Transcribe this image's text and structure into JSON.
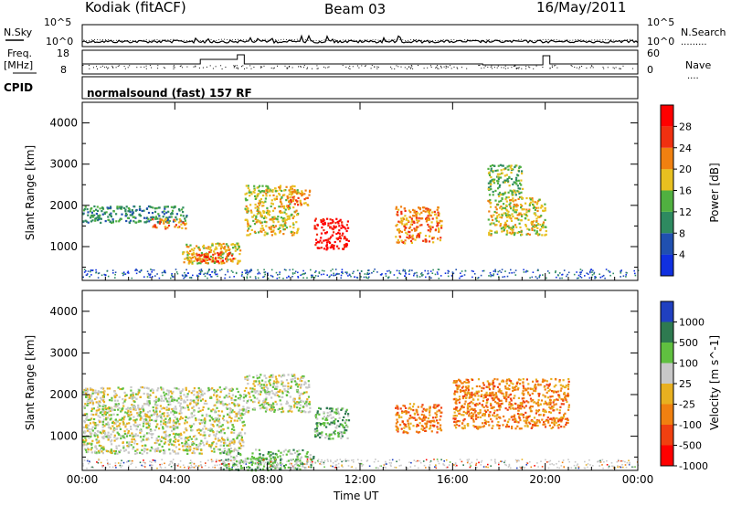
{
  "header": {
    "station": "Kodiak (fitACF)",
    "beam": "Beam 03",
    "date": "16/May/2011"
  },
  "aux": {
    "nsky_label": "N.Sky",
    "nsearch_label": "N.Search",
    "freq_label_1": "Freq.",
    "freq_label_2": "[MHz]",
    "nave_label": "Nave",
    "cpid_label": "CPID",
    "noise_ticks_left": [
      "10^5",
      "10^0"
    ],
    "noise_ticks_right": [
      "10^5",
      "10^0"
    ],
    "freq_ticks": [
      "18",
      "8"
    ],
    "nave_ticks": [
      "60",
      "0"
    ],
    "cpid_text": "normalsound (fast) 157 RF"
  },
  "chart_data": [
    {
      "type": "heatmap",
      "panel": "power",
      "ylabel": "Slant Range [km]",
      "yticks": [
        "4000",
        "3000",
        "2000",
        "1000"
      ],
      "ylim": [
        180,
        4500
      ],
      "xlim": [
        0,
        24
      ],
      "colorbar_label": "Power [dB]",
      "colorbar_ticks": [
        "28",
        "24",
        "20",
        "16",
        "12",
        "8",
        "4"
      ],
      "colors": [
        "#1030e0",
        "#2050b0",
        "#2e8a60",
        "#50b040",
        "#e8c020",
        "#f08010",
        "#f03010",
        "#ff0000"
      ],
      "regions": [
        {
          "t0": 0.0,
          "t1": 4.5,
          "r0": 1600,
          "r1": 2000,
          "level": 2
        },
        {
          "t0": 3.0,
          "t1": 4.5,
          "r0": 1450,
          "r1": 1700,
          "level": 5
        },
        {
          "t0": 4.3,
          "t1": 6.8,
          "r0": 600,
          "r1": 1100,
          "level": 4
        },
        {
          "t0": 4.8,
          "t1": 6.5,
          "r0": 650,
          "r1": 900,
          "level": 6
        },
        {
          "t0": 7.0,
          "t1": 9.3,
          "r0": 1300,
          "r1": 2500,
          "level": 4
        },
        {
          "t0": 8.8,
          "t1": 9.8,
          "r0": 2000,
          "r1": 2400,
          "level": 5
        },
        {
          "t0": 10.0,
          "t1": 11.5,
          "r0": 950,
          "r1": 1700,
          "level": 7
        },
        {
          "t0": 13.5,
          "t1": 15.5,
          "r0": 1100,
          "r1": 2000,
          "level": 5
        },
        {
          "t0": 17.5,
          "t1": 20.0,
          "r0": 1300,
          "r1": 2200,
          "level": 4
        },
        {
          "t0": 17.5,
          "t1": 19.0,
          "r0": 2200,
          "r1": 3000,
          "level": 3
        }
      ]
    },
    {
      "type": "heatmap",
      "panel": "velocity",
      "ylabel": "Slant Range [km]",
      "yticks": [
        "4000",
        "3000",
        "2000",
        "1000"
      ],
      "ylim": [
        180,
        4500
      ],
      "xlim": [
        0,
        24
      ],
      "colorbar_label": "Velocity [m s^-1]",
      "colorbar_ticks": [
        "1000",
        "500",
        "100",
        "25",
        "-25",
        "-100",
        "-500",
        "-1000"
      ],
      "colors": [
        "#2040c0",
        "#2e7a50",
        "#60c040",
        "#c8c8c8",
        "#e8b020",
        "#f08010",
        "#f04010",
        "#ff0000"
      ],
      "regions": [
        {
          "t0": 0.0,
          "t1": 7.0,
          "r0": 600,
          "r1": 2200,
          "level": 3
        },
        {
          "t0": 7.0,
          "t1": 9.8,
          "r0": 1600,
          "r1": 2500,
          "level": 3
        },
        {
          "t0": 10.0,
          "t1": 11.5,
          "r0": 950,
          "r1": 1700,
          "level": 2
        },
        {
          "t0": 13.5,
          "t1": 15.5,
          "r0": 1100,
          "r1": 1800,
          "level": 5
        },
        {
          "t0": 16.0,
          "t1": 21.0,
          "r0": 1200,
          "r1": 2400,
          "level": 5
        },
        {
          "t0": 6.0,
          "t1": 10.0,
          "r0": 200,
          "r1": 700,
          "level": 2
        }
      ]
    }
  ],
  "xaxis": {
    "label": "Time UT",
    "ticks": [
      "00:00",
      "04:00",
      "08:00",
      "12:00",
      "16:00",
      "20:00",
      "00:00"
    ]
  }
}
